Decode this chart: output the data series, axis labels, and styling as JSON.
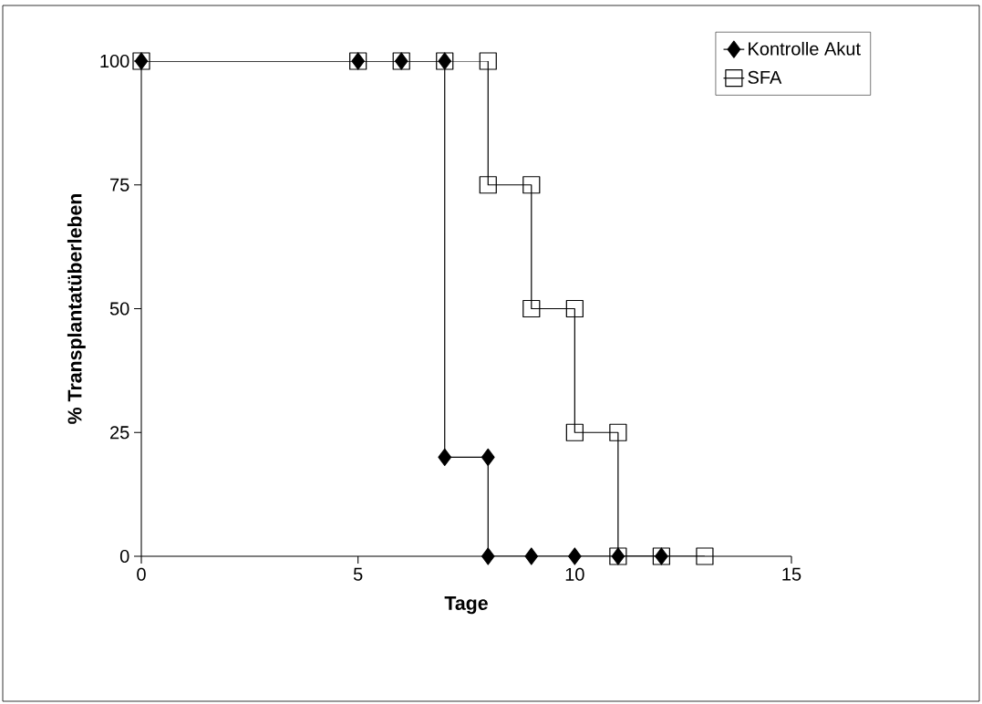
{
  "chart_data": {
    "type": "line",
    "xlabel": "Tage",
    "ylabel": "% Transplantatüberleben",
    "xlim": [
      0,
      15
    ],
    "xticks": [
      0,
      5,
      10,
      15
    ],
    "ylim": [
      0,
      100
    ],
    "yticks": [
      0,
      25,
      50,
      75,
      100
    ],
    "legend": "top right",
    "line_style": "solid",
    "series": [
      {
        "name": "Kontrolle Akut",
        "color": "#000000",
        "marker": "diamond",
        "x": [
          0,
          5,
          6,
          7,
          7,
          8,
          8,
          9,
          10,
          11,
          12
        ],
        "values": [
          100,
          100,
          100,
          100,
          20,
          20,
          0,
          0,
          0,
          0,
          0
        ]
      },
      {
        "name": "SFA",
        "color": "#000000",
        "marker": "square",
        "x": [
          0,
          5,
          6,
          7,
          8,
          8,
          9,
          9,
          10,
          10,
          11,
          11,
          12,
          13
        ],
        "values": [
          100,
          100,
          100,
          100,
          100,
          75,
          75,
          50,
          50,
          25,
          25,
          0,
          0,
          0
        ]
      }
    ]
  }
}
